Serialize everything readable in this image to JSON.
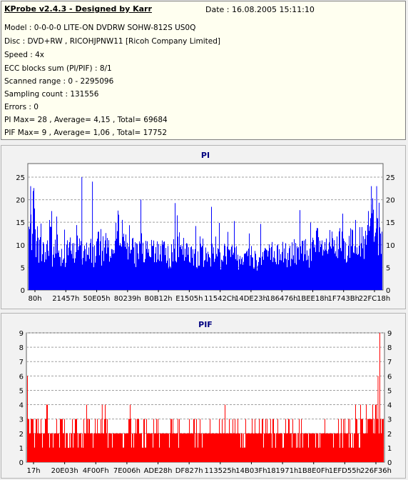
{
  "header": {
    "title": "KProbe v2.4.3 - Designed by Karr",
    "date": "Date : 16.08.2005 15:11:10",
    "lines": [
      "Model : 0-0-0-0 LITE-ON DVDRW SOHW-812S  US0Q",
      "Disc : DVD+RW , RICOHJPNW11 [Ricoh Company Limited]",
      "Speed : 4x",
      "ECC blocks sum (PI/PIF) : 8/1",
      "Scanned range : 0 - 2295096",
      "Sampling count : 131556",
      "Errors : 0",
      "PI Max= 28 , Average= 4,15 , Total= 69684",
      "PIF Max= 9 , Average= 1,06 , Total= 17752"
    ]
  },
  "colors": {
    "pi": "#0000ff",
    "pif": "#ff0000",
    "plot_bg": "#ffffff",
    "title": "#000080"
  },
  "chart_data": [
    {
      "type": "bar",
      "title": "PI",
      "x_ticks": [
        "80h",
        "21457h",
        "50E05h",
        "80239h",
        "B0B12h",
        "E1505h",
        "11542Ch",
        "14DE23h",
        "186476h",
        "1BEE18h",
        "1F743Bh",
        "22FC18h"
      ],
      "y_ticks": [
        0,
        5,
        10,
        15,
        20,
        25
      ],
      "ylim": [
        0,
        28
      ],
      "grid": true,
      "series": [
        {
          "values": [
            18,
            22,
            15,
            13,
            12,
            11,
            13,
            20,
            10,
            14,
            12,
            11,
            10,
            13,
            12,
            11,
            16,
            12,
            11,
            13,
            10,
            12,
            11,
            14,
            13,
            12,
            15,
            13,
            12,
            11,
            18,
            21,
            17,
            14,
            13,
            12,
            11,
            12,
            13,
            12,
            11,
            10,
            12,
            11,
            13,
            12,
            11,
            12,
            10,
            11,
            12,
            13,
            11,
            12,
            11,
            10,
            12,
            11,
            10,
            12,
            11,
            10,
            11,
            12,
            13,
            11,
            10,
            12,
            11,
            10,
            12,
            11,
            10,
            11,
            12,
            10,
            11,
            10,
            9,
            11,
            10,
            12,
            11,
            10,
            9,
            11,
            10,
            12,
            11,
            10,
            11,
            12,
            10,
            11,
            13,
            12,
            11,
            12,
            13,
            14,
            12,
            13,
            12,
            14,
            13,
            12,
            13,
            14,
            13,
            12,
            14,
            16,
            15,
            17,
            14,
            13,
            15,
            19,
            23,
            18,
            16,
            14
          ],
          "max": 28
        }
      ]
    },
    {
      "type": "bar",
      "title": "PIF",
      "x_ticks": [
        "17h",
        "20E03h",
        "4F00Fh",
        "7E006h",
        "ADE28h",
        "DF827h",
        "113525h",
        "14B03Fh",
        "181971h",
        "1B8E0Fh",
        "1EFD55h",
        "226F36h"
      ],
      "y_ticks": [
        0,
        1,
        2,
        3,
        4,
        5,
        6,
        7,
        8,
        9
      ],
      "ylim": [
        0,
        9
      ],
      "grid": true,
      "series": [
        {
          "values": [
            3,
            3,
            2,
            3,
            2,
            2,
            3,
            2,
            2,
            2,
            2,
            3,
            2,
            2,
            2,
            2,
            3,
            2,
            2,
            2,
            3,
            2,
            2,
            2,
            2,
            2,
            3,
            2,
            2,
            2,
            2,
            2,
            2,
            2,
            3,
            2,
            2,
            2,
            2,
            2,
            2,
            2,
            2,
            2,
            2,
            2,
            2,
            2,
            2,
            2,
            2,
            2,
            2,
            2,
            2,
            2,
            2,
            2,
            2,
            2,
            2,
            2,
            2,
            2,
            2,
            2,
            2,
            2,
            2,
            2,
            2,
            2,
            2,
            2,
            2,
            2,
            2,
            2,
            2,
            2,
            2,
            2,
            2,
            2,
            2,
            2,
            2,
            2,
            2,
            2,
            2,
            2,
            2,
            2,
            2,
            2,
            2,
            2,
            2,
            2,
            2,
            2,
            2,
            2,
            2,
            2,
            2,
            2,
            2,
            2,
            3,
            2,
            3,
            2,
            3,
            3,
            3,
            3,
            3,
            3
          ],
          "max": 9
        }
      ]
    }
  ]
}
